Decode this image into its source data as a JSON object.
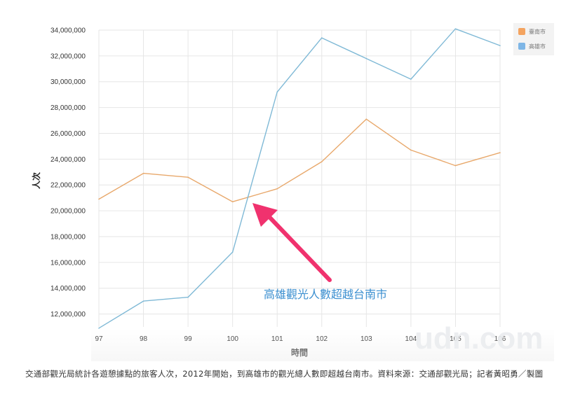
{
  "chart_data": {
    "type": "line",
    "x": [
      "97",
      "98",
      "99",
      "100",
      "101",
      "102",
      "103",
      "104",
      "105",
      "106"
    ],
    "xlabel": "時間",
    "ylabel": "人次",
    "ylim": [
      11000000,
      34000000
    ],
    "yticks": [
      "12,000,000",
      "14,000,000",
      "16,000,000",
      "18,000,000",
      "20,000,000",
      "22,000,000",
      "24,000,000",
      "26,000,000",
      "28,000,000",
      "30,000,000",
      "32,000,000",
      "34,000,000"
    ],
    "ytick_values": [
      12000000,
      14000000,
      16000000,
      18000000,
      20000000,
      22000000,
      24000000,
      26000000,
      28000000,
      30000000,
      32000000,
      34000000
    ],
    "grid": true,
    "legend_position": "top-right",
    "series": [
      {
        "name": "臺南市",
        "color": "#e8a86b",
        "legend_color": "#f4a460",
        "values": [
          20900000,
          22900000,
          22600000,
          20700000,
          21700000,
          23800000,
          27100000,
          24700000,
          23500000,
          24500000
        ]
      },
      {
        "name": "高雄市",
        "color": "#7fb9d6",
        "legend_color": "#7eb6e6",
        "values": [
          10900000,
          13000000,
          13300000,
          16800000,
          29200000,
          33400000,
          31800000,
          30200000,
          34100000,
          32800000
        ]
      }
    ],
    "annotation": {
      "text": "高雄觀光人數超越台南市",
      "color": "#3b8fd0",
      "arrow_color": "#f0326e"
    }
  },
  "watermark": "udn.com",
  "caption": "交通部觀光局統計各遊憩據點的旅客人次，2012年開始，到高雄市的觀光總人數即超越台南市。資料來源：交通部觀光局；記者黃昭勇／製圖"
}
